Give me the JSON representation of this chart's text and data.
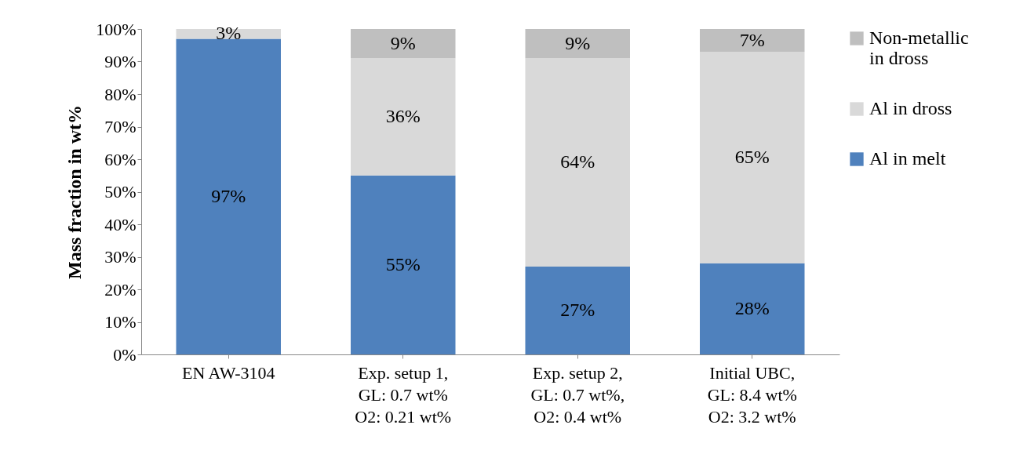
{
  "chart_data": {
    "type": "bar",
    "stacked": true,
    "ylabel": "Mass fraction in wt%",
    "categories": [
      "EN AW-3104",
      "Exp. setup 1,\nGL: 0.7 wt%\nO2: 0.21 wt%",
      "Exp. setup 2,\nGL: 0.7 wt%,\nO2: 0.4 wt%",
      "Initial UBC,\nGL: 8.4 wt%\nO2: 3.2 wt%"
    ],
    "series": [
      {
        "name": "Al in melt",
        "color": "#4f81bd",
        "values": [
          97,
          55,
          27,
          28
        ],
        "value_labels": [
          "97%",
          "55%",
          "27%",
          "28%"
        ]
      },
      {
        "name": "Al in dross",
        "color": "#d9d9d9",
        "values": [
          3,
          36,
          64,
          65
        ],
        "value_labels": [
          "3%",
          "36%",
          "64%",
          "65%"
        ]
      },
      {
        "name": "Non-metallic\nin dross",
        "color": "#bfbfbf",
        "values": [
          null,
          9,
          9,
          7
        ],
        "value_labels": [
          null,
          "9%",
          "9%",
          "7%"
        ]
      }
    ],
    "ylim": [
      0,
      100
    ],
    "yticks": [
      {
        "value": 0,
        "label": "0%"
      },
      {
        "value": 10,
        "label": "10%"
      },
      {
        "value": 20,
        "label": "20%"
      },
      {
        "value": 30,
        "label": "30%"
      },
      {
        "value": 40,
        "label": "40%"
      },
      {
        "value": 50,
        "label": "50%"
      },
      {
        "value": 60,
        "label": "60%"
      },
      {
        "value": 70,
        "label": "70%"
      },
      {
        "value": 80,
        "label": "80%"
      },
      {
        "value": 90,
        "label": "90%"
      },
      {
        "value": 100,
        "label": "100%"
      }
    ],
    "legend": "right"
  }
}
